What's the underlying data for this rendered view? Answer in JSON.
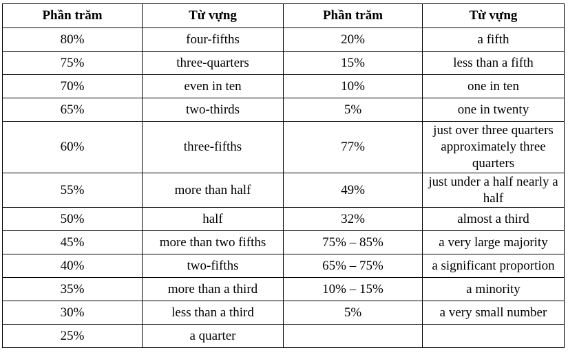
{
  "table": {
    "headers": [
      "Phần trăm",
      "Từ vựng",
      "Phần trăm",
      "Từ vựng"
    ],
    "rows": [
      [
        "80%",
        "four-fifths",
        "20%",
        "a fifth"
      ],
      [
        "75%",
        "three-quarters",
        "15%",
        "less than a fifth"
      ],
      [
        "70%",
        "even in ten",
        "10%",
        "one in ten"
      ],
      [
        "65%",
        "two-thirds",
        "5%",
        "one in twenty"
      ],
      [
        "60%",
        "three-fifths",
        "77%",
        "just over three quarters approximately three quarters"
      ],
      [
        "55%",
        "more than half",
        "49%",
        "just under a half nearly a half"
      ],
      [
        "50%",
        "half",
        "32%",
        "almost a third"
      ],
      [
        "45%",
        "more than two fifths",
        "75% – 85%",
        "a very large majority"
      ],
      [
        "40%",
        "two-fifths",
        "65% – 75%",
        "a significant proportion"
      ],
      [
        "35%",
        "more than a third",
        "10% – 15%",
        "a minority"
      ],
      [
        "30%",
        "less than a third",
        "5%",
        "a very small number"
      ],
      [
        "25%",
        "a quarter",
        "",
        ""
      ]
    ]
  }
}
